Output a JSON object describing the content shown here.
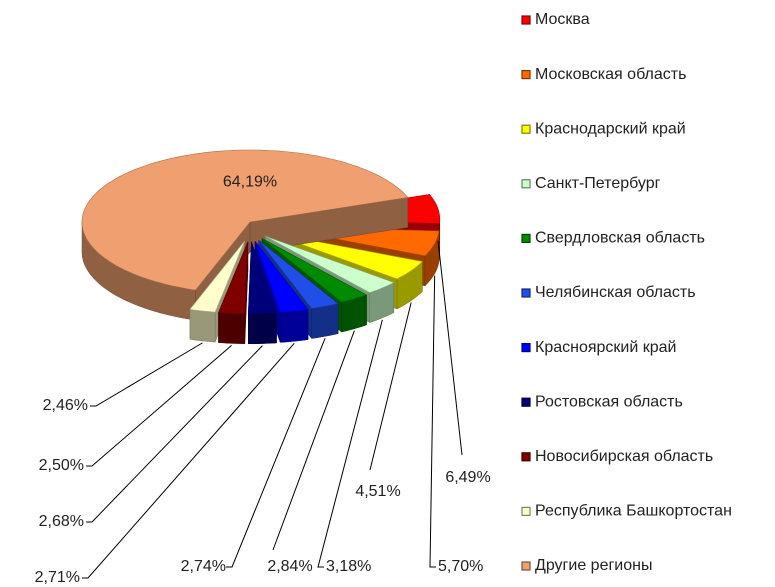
{
  "chart_data": {
    "type": "pie3d",
    "categories": [
      "Москва",
      "Московская область",
      "Краснодарский край",
      "Санкт-Петербург",
      "Свердловская область",
      "Челябинская область",
      "Красноярский край",
      "Ростовская область",
      "Новосибирская область",
      "Республика Башкортостан",
      "Другие регионы"
    ],
    "values": [
      6.49,
      5.7,
      4.51,
      3.18,
      2.84,
      2.74,
      2.71,
      2.68,
      2.5,
      2.46,
      64.19
    ],
    "value_labels": [
      "6,49%",
      "5,70%",
      "4,51%",
      "3,18%",
      "2,84%",
      "2,74%",
      "2,71%",
      "2,68%",
      "2,50%",
      "2,46%",
      "64,19%"
    ],
    "colors": [
      "#ff0000",
      "#ff6a00",
      "#ffff00",
      "#ccffcc",
      "#008a00",
      "#1f4fe6",
      "#0000ff",
      "#00007a",
      "#800000",
      "#ffffcc",
      "#f0a070"
    ],
    "legend": "right"
  }
}
